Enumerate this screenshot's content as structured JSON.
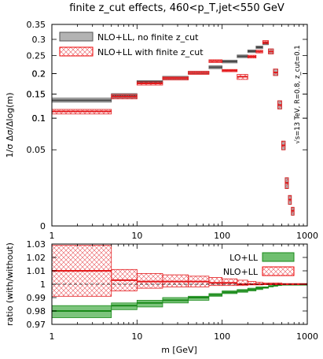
{
  "title": "finite z_cut effects, 460<p_T,jet<550 GeV",
  "chart_data": [
    {
      "type": "histogram-band",
      "xscale": "log",
      "xlim": [
        1,
        1000
      ],
      "ylim_display": [
        0,
        0.35
      ],
      "xticks": [
        "1",
        "10",
        "100",
        "1000"
      ],
      "yticks": [
        "0",
        "0.05",
        "0.1",
        "0.1",
        "0.15",
        "0.15",
        "0.2",
        "0.2",
        "0.25",
        "0.3",
        "0.35"
      ],
      "ylabel": "1/σ Δσ/Δlog(m)",
      "annotation": "√s=13 TeV, R=0.8, z_cut=0.1",
      "legend_position": "top-left",
      "series": [
        {
          "name": "NLO+LL, no finite z_cut",
          "style": "grey-band",
          "bins": [
            {
              "x": [
                1,
                5
              ],
              "y": [
                0.132,
                0.141
              ],
              "c": 0.136
            },
            {
              "x": [
                5,
                10
              ],
              "y": [
                0.141,
                0.151
              ],
              "c": 0.146
            },
            {
              "x": [
                10,
                20
              ],
              "y": [
                0.176,
                0.182
              ],
              "c": 0.179
            },
            {
              "x": [
                20,
                40
              ],
              "y": [
                0.184,
                0.193
              ],
              "c": 0.188
            },
            {
              "x": [
                40,
                70
              ],
              "y": [
                0.199,
                0.206
              ],
              "c": 0.202
            },
            {
              "x": [
                70,
                100
              ],
              "y": [
                0.213,
                0.221
              ],
              "c": 0.217
            },
            {
              "x": [
                100,
                150
              ],
              "y": [
                0.229,
                0.237
              ],
              "c": 0.233
            },
            {
              "x": [
                150,
                200
              ],
              "y": [
                0.244,
                0.252
              ],
              "c": 0.248
            },
            {
              "x": [
                200,
                250
              ],
              "y": [
                0.259,
                0.267
              ],
              "c": 0.263
            },
            {
              "x": [
                250,
                300
              ],
              "y": [
                0.271,
                0.279
              ],
              "c": 0.275
            },
            {
              "x": [
                300,
                350
              ],
              "y": [
                0.283,
                0.292
              ],
              "c": 0.287
            },
            {
              "x": [
                350,
                400
              ],
              "y": [
                0.255,
                0.27
              ],
              "c": 0.262
            },
            {
              "x": [
                400,
                450
              ],
              "y": [
                0.195,
                0.212
              ],
              "c": 0.203
            },
            {
              "x": [
                450,
                500
              ],
              "y": [
                0.118,
                0.135
              ],
              "c": 0.126
            },
            {
              "x": [
                500,
                550
              ],
              "y": [
                0.05,
                0.062
              ],
              "c": 0.056
            },
            {
              "x": [
                550,
                600
              ],
              "y": [
                0.012,
                0.02
              ],
              "c": 0.016
            },
            {
              "x": [
                600,
                650
              ],
              "y": [
                0.004,
                0.008
              ],
              "c": 0.006
            },
            {
              "x": [
                650,
                700
              ],
              "y": [
                0.001,
                0.003
              ],
              "c": 0.002
            }
          ]
        },
        {
          "name": "NLO+LL with finite z_cut",
          "style": "red-hatched-band",
          "bins": [
            {
              "x": [
                1,
                5
              ],
              "y": [
                0.108,
                0.117
              ],
              "c": 0.113
            },
            {
              "x": [
                5,
                10
              ],
              "y": [
                0.139,
                0.149
              ],
              "c": 0.144
            },
            {
              "x": [
                10,
                20
              ],
              "y": [
                0.171,
                0.179
              ],
              "c": 0.175
            },
            {
              "x": [
                20,
                40
              ],
              "y": [
                0.184,
                0.191
              ],
              "c": 0.188
            },
            {
              "x": [
                40,
                70
              ],
              "y": [
                0.198,
                0.206
              ],
              "c": 0.202
            },
            {
              "x": [
                70,
                100
              ],
              "y": [
                0.23,
                0.238
              ],
              "c": 0.234
            },
            {
              "x": [
                100,
                150
              ],
              "y": [
                0.205,
                0.211
              ],
              "c": 0.208
            },
            {
              "x": [
                150,
                200
              ],
              "y": [
                0.185,
                0.198
              ],
              "c": 0.192
            },
            {
              "x": [
                200,
                250
              ],
              "y": [
                0.243,
                0.251
              ],
              "c": 0.247
            },
            {
              "x": [
                250,
                300
              ],
              "y": [
                0.258,
                0.266
              ],
              "c": 0.262
            },
            {
              "x": [
                300,
                350
              ],
              "y": [
                0.286,
                0.296
              ],
              "c": 0.291
            },
            {
              "x": [
                350,
                400
              ],
              "y": [
                0.255,
                0.27
              ],
              "c": 0.262
            },
            {
              "x": [
                400,
                450
              ],
              "y": [
                0.195,
                0.212
              ],
              "c": 0.203
            },
            {
              "x": [
                450,
                500
              ],
              "y": [
                0.118,
                0.135
              ],
              "c": 0.126
            },
            {
              "x": [
                500,
                550
              ],
              "y": [
                0.05,
                0.062
              ],
              "c": 0.056
            },
            {
              "x": [
                550,
                600
              ],
              "y": [
                0.012,
                0.02
              ],
              "c": 0.016
            },
            {
              "x": [
                600,
                650
              ],
              "y": [
                0.004,
                0.008
              ],
              "c": 0.006
            },
            {
              "x": [
                650,
                700
              ],
              "y": [
                0.001,
                0.003
              ],
              "c": 0.002
            }
          ]
        }
      ]
    },
    {
      "type": "ratio-band",
      "xscale": "log",
      "xlim": [
        1,
        1000
      ],
      "ylim": [
        0.97,
        1.03
      ],
      "xticks": [
        "1",
        "10",
        "100",
        "1000"
      ],
      "yticks": [
        "0.97",
        "0.98",
        "0.99",
        "1",
        "1.01",
        "1.02",
        "1.03"
      ],
      "xlabel": "m [GeV]",
      "ylabel": "ratio (with/without)",
      "legend_position": "top-right",
      "series": [
        {
          "name": "LO+LL",
          "style": "green-band",
          "bins": [
            {
              "x": [
                1,
                5
              ],
              "y": [
                0.975,
                0.984
              ],
              "c": 0.98
            },
            {
              "x": [
                5,
                10
              ],
              "y": [
                0.981,
                0.986
              ],
              "c": 0.984
            },
            {
              "x": [
                10,
                20
              ],
              "y": [
                0.983,
                0.988
              ],
              "c": 0.986
            },
            {
              "x": [
                20,
                40
              ],
              "y": [
                0.986,
                0.99
              ],
              "c": 0.988
            },
            {
              "x": [
                40,
                70
              ],
              "y": [
                0.988,
                0.991
              ],
              "c": 0.99
            },
            {
              "x": [
                70,
                100
              ],
              "y": [
                0.991,
                0.993
              ],
              "c": 0.992
            },
            {
              "x": [
                100,
                150
              ],
              "y": [
                0.993,
                0.995
              ],
              "c": 0.994
            },
            {
              "x": [
                150,
                200
              ],
              "y": [
                0.994,
                0.996
              ],
              "c": 0.995
            },
            {
              "x": [
                200,
                250
              ],
              "y": [
                0.995,
                0.997
              ],
              "c": 0.996
            },
            {
              "x": [
                250,
                300
              ],
              "y": [
                0.996,
                0.998
              ],
              "c": 0.997
            },
            {
              "x": [
                300,
                350
              ],
              "y": [
                0.997,
                0.998
              ],
              "c": 0.9975
            },
            {
              "x": [
                350,
                400
              ],
              "y": [
                0.998,
                0.999
              ],
              "c": 0.9985
            },
            {
              "x": [
                400,
                450
              ],
              "y": [
                0.9985,
                0.9995
              ],
              "c": 0.999
            },
            {
              "x": [
                450,
                500
              ],
              "y": [
                0.999,
                1.0
              ],
              "c": 0.9995
            },
            {
              "x": [
                500,
                1000
              ],
              "y": [
                0.9995,
                1.0
              ],
              "c": 1.0
            }
          ]
        },
        {
          "name": "NLO+LL",
          "style": "red-hatched-band",
          "bins": [
            {
              "x": [
                1,
                5
              ],
              "y": [
                0.991,
                1.029
              ],
              "c": 1.01
            },
            {
              "x": [
                5,
                10
              ],
              "y": [
                0.995,
                1.011
              ],
              "c": 1.003
            },
            {
              "x": [
                10,
                20
              ],
              "y": [
                0.997,
                1.008
              ],
              "c": 1.002
            },
            {
              "x": [
                20,
                40
              ],
              "y": [
                0.998,
                1.007
              ],
              "c": 1.002
            },
            {
              "x": [
                40,
                70
              ],
              "y": [
                0.998,
                1.006
              ],
              "c": 1.002
            },
            {
              "x": [
                70,
                100
              ],
              "y": [
                0.999,
                1.005
              ],
              "c": 1.001
            },
            {
              "x": [
                100,
                150
              ],
              "y": [
                0.999,
                1.004
              ],
              "c": 1.001
            },
            {
              "x": [
                150,
                200
              ],
              "y": [
                0.999,
                1.003
              ],
              "c": 1.0
            },
            {
              "x": [
                200,
                250
              ],
              "y": [
                0.9995,
                1.002
              ],
              "c": 1.0
            },
            {
              "x": [
                250,
                300
              ],
              "y": [
                0.9995,
                1.0015
              ],
              "c": 1.0
            },
            {
              "x": [
                300,
                500
              ],
              "y": [
                0.9998,
                1.001
              ],
              "c": 1.0
            },
            {
              "x": [
                500,
                1000
              ],
              "y": [
                0.9999,
                1.0005
              ],
              "c": 1.0
            }
          ]
        }
      ]
    }
  ]
}
